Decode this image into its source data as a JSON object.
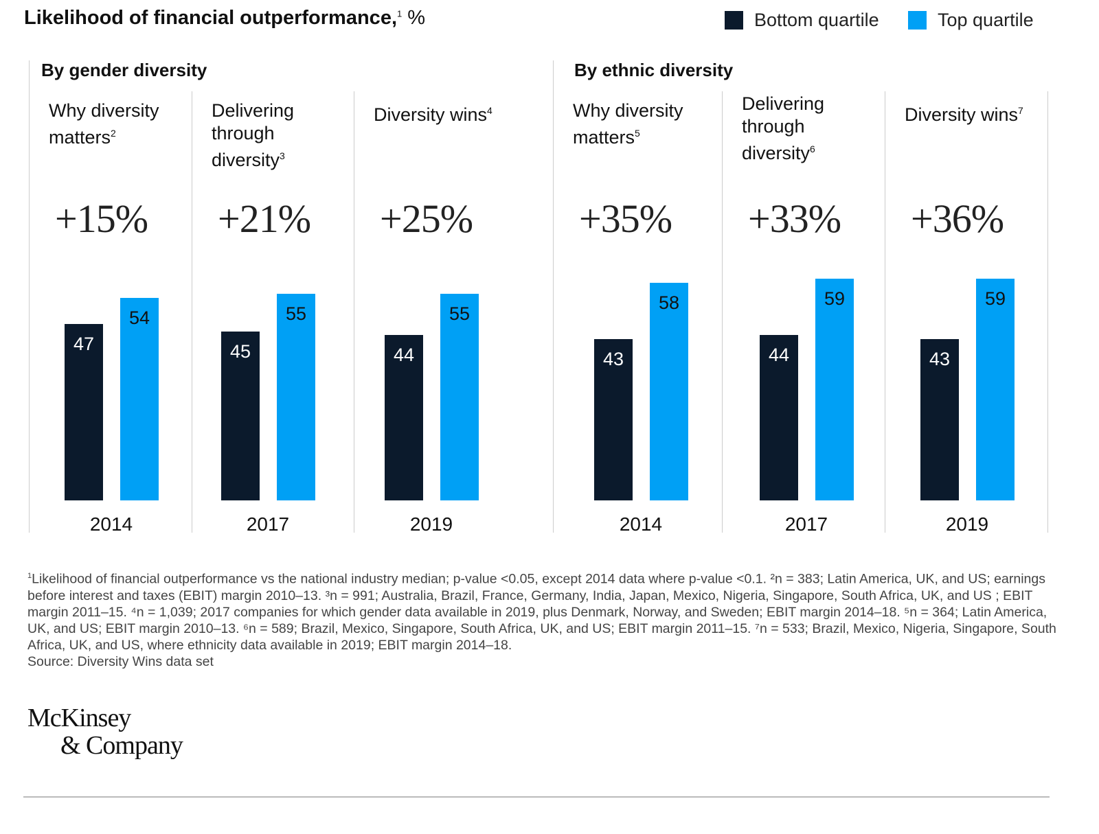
{
  "chart_data": {
    "type": "bar",
    "title": "Likelihood of financial outperformance,",
    "title_footnote": "1",
    "unit": "%",
    "legend": {
      "placement": "top-right",
      "entries": [
        {
          "name": "Bottom quartile",
          "color": "#0b1a2c"
        },
        {
          "name": "Top quartile",
          "color": "#00a0f5"
        }
      ]
    },
    "groups": [
      {
        "title": "By gender diversity",
        "panels": [
          {
            "title": "Why diversity matters",
            "footnote": "2",
            "uplift": "+15%",
            "year": "2014",
            "bottom": 47,
            "top": 54
          },
          {
            "title": "Delivering through diversity",
            "footnote": "3",
            "uplift": "+21%",
            "year": "2017",
            "bottom": 45,
            "top": 55
          },
          {
            "title": "Diversity wins",
            "footnote": "4",
            "uplift": "+25%",
            "year": "2019",
            "bottom": 44,
            "top": 55
          }
        ]
      },
      {
        "title": "By ethnic diversity",
        "panels": [
          {
            "title": "Why diversity matters",
            "footnote": "5",
            "uplift": "+35%",
            "year": "2014",
            "bottom": 43,
            "top": 58
          },
          {
            "title": "Delivering through diversity",
            "footnote": "6",
            "uplift": "+33%",
            "year": "2017",
            "bottom": 44,
            "top": 59
          },
          {
            "title": "Diversity wins",
            "footnote": "7",
            "uplift": "+36%",
            "year": "2019",
            "bottom": 43,
            "top": 59
          }
        ]
      }
    ]
  },
  "notes": {
    "text": "Likelihood of financial outperformance vs the national industry median; p-value <0.05, except 2014 data where p-value <0.1.  ²n = 383; Latin America, UK, and US; earnings before interest and taxes (EBIT) margin 2010–13. ³n = 991; Australia, Brazil, France, Germany, India, Japan, Mexico, Nigeria, Singapore, South Africa, UK, and US ; EBIT margin 2011–15. ⁴n = 1,039; 2017 companies for which gender data available in 2019, plus Denmark, Norway, and Sweden;  EBIT margin 2014–18. ⁵n = 364; Latin America, UK, and US; EBIT margin 2010–13. ⁶n = 589; Brazil, Mexico, Singapore, South Africa, UK, and US; EBIT margin 2011–15. ⁷n = 533; Brazil, Mexico, Nigeria, Singapore, South Africa, UK, and US, where ethnicity data available in 2019; EBIT margin 2014–18.",
    "note_marker": "1",
    "source": "Source: Diversity Wins data set"
  },
  "logo": {
    "line1": "McKinsey",
    "line2": "& Company"
  }
}
